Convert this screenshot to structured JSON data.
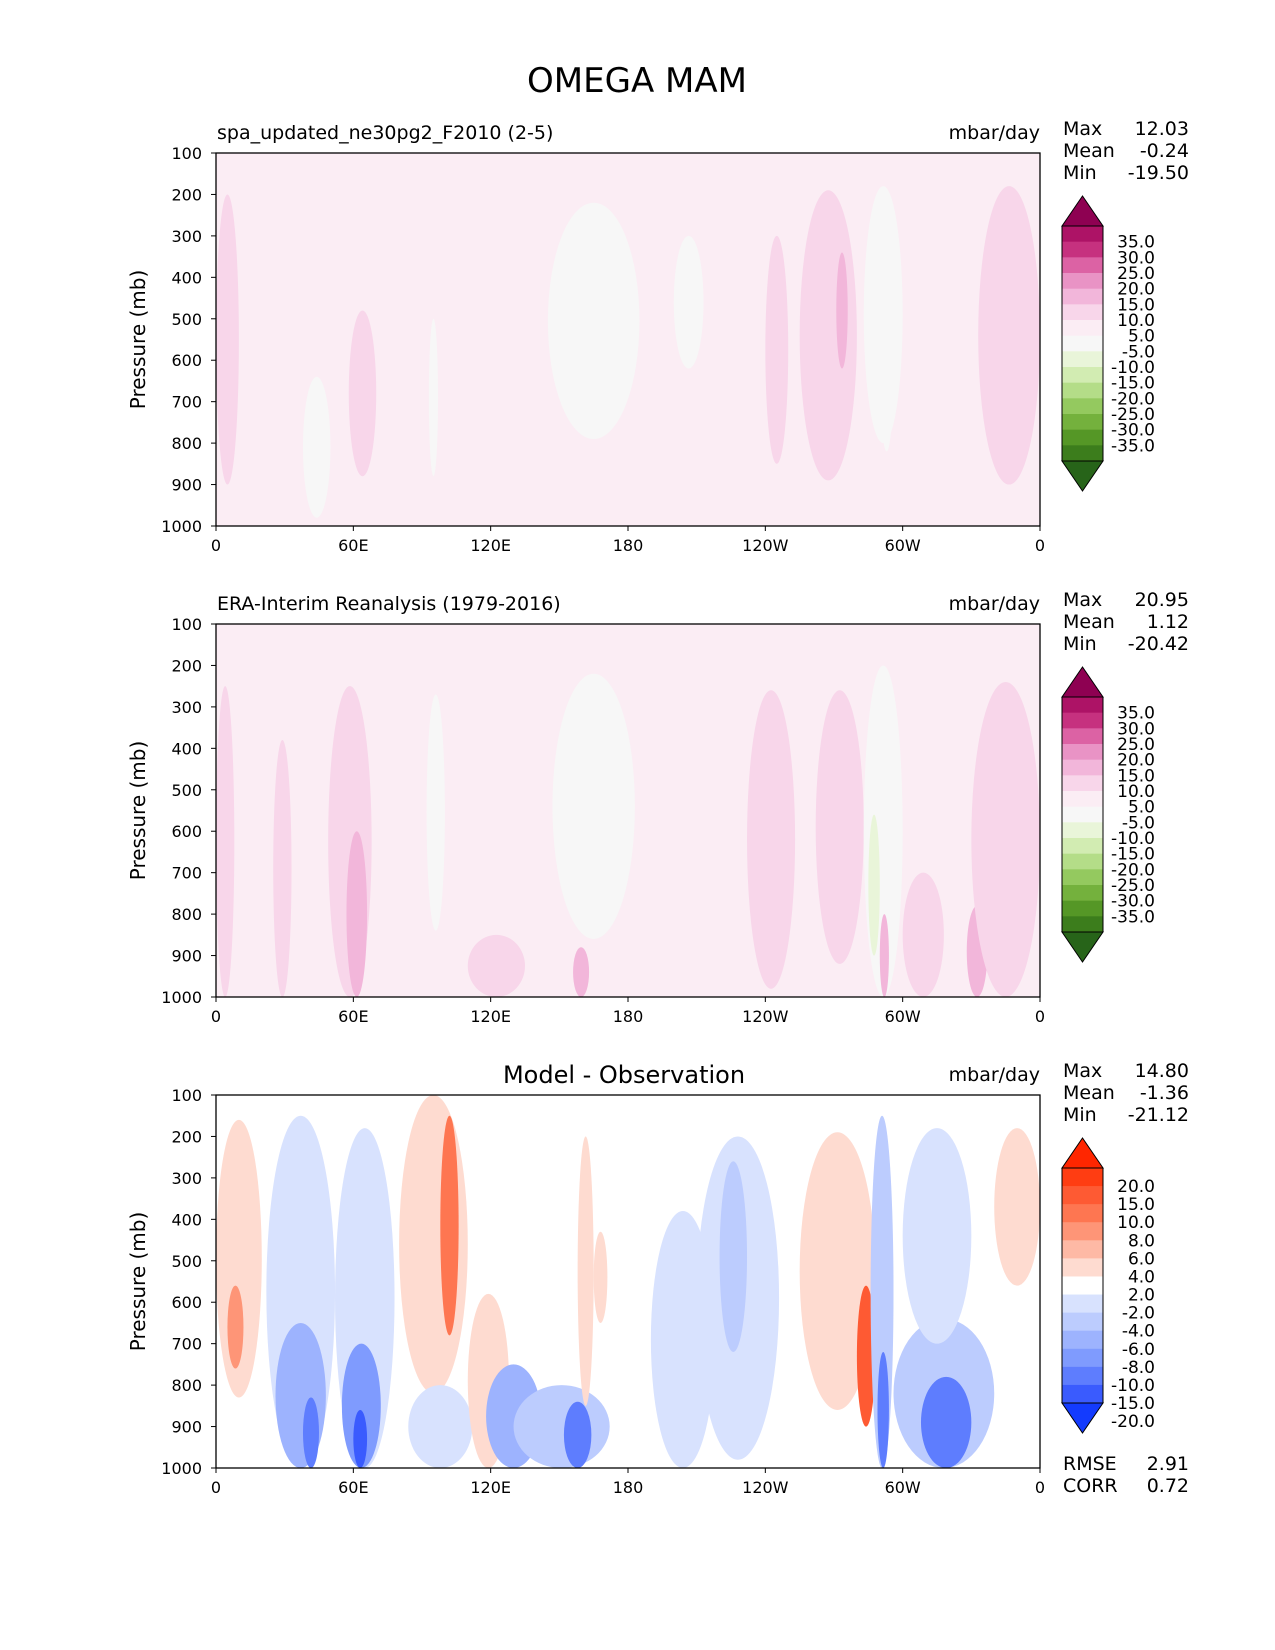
{
  "title": "OMEGA MAM",
  "axes": {
    "ylabel": "Pressure (mb)",
    "y_ticks": [
      100,
      200,
      300,
      400,
      500,
      600,
      700,
      800,
      900,
      1000
    ],
    "ylim": [
      1000,
      100
    ],
    "x_ticks": [
      "0",
      "60E",
      "120E",
      "180",
      "120W",
      "60W",
      "0"
    ],
    "xlim_deg": [
      0,
      360
    ]
  },
  "chart_data": [
    {
      "type": "heatmap",
      "panel": "test",
      "title": "spa_updated_ne30pg2_F2010 (2-5)",
      "units": "mbar/day",
      "stats": [
        {
          "label": "Max",
          "value": "12.03"
        },
        {
          "label": "Mean",
          "value": "-0.24"
        },
        {
          "label": "Min",
          "value": "-19.50"
        }
      ],
      "colorbar": {
        "levels": [
          "35.0",
          "30.0",
          "25.0",
          "20.0",
          "15.0",
          "10.0",
          "5.0",
          "-5.0",
          "-10.0",
          "-15.0",
          "-20.0",
          "-25.0",
          "-30.0",
          "-35.0"
        ],
        "colors": [
          "#8e0152",
          "#ad1366",
          "#c6317f",
          "#dc62a4",
          "#e993c5",
          "#f2b6da",
          "#f8d6ea",
          "#fbedf4",
          "#f7f7f7",
          "#e9f5d9",
          "#d2ecb2",
          "#b4dd88",
          "#94c95f",
          "#74b13d",
          "#559726",
          "#3c7d1c",
          "#276419"
        ],
        "extend": "both"
      },
      "features": [
        {
          "lon": [
            0,
            10
          ],
          "p": [
            200,
            900
          ],
          "v": 6
        },
        {
          "lon": [
            44,
            48
          ],
          "p": [
            760,
            900
          ],
          "v": -8
        },
        {
          "lon": [
            38,
            50
          ],
          "p": [
            640,
            980
          ],
          "v": -6
        },
        {
          "lon": [
            58,
            70
          ],
          "p": [
            480,
            880
          ],
          "v": 6
        },
        {
          "lon": [
            93,
            97
          ],
          "p": [
            500,
            880
          ],
          "v": -6
        },
        {
          "lon": [
            145,
            185
          ],
          "p": [
            220,
            790
          ],
          "v": -7
        },
        {
          "lon": [
            200,
            213
          ],
          "p": [
            300,
            620
          ],
          "v": -6
        },
        {
          "lon": [
            240,
            250
          ],
          "p": [
            300,
            850
          ],
          "v": 5
        },
        {
          "lon": [
            255,
            280
          ],
          "p": [
            190,
            890
          ],
          "v": 6
        },
        {
          "lon": [
            271,
            276
          ],
          "p": [
            340,
            620
          ],
          "v": 12
        },
        {
          "lon": [
            283,
            300
          ],
          "p": [
            180,
            800
          ],
          "v": -7
        },
        {
          "lon": [
            290,
            296
          ],
          "p": [
            400,
            820
          ],
          "v": -9
        },
        {
          "lon": [
            333,
            360
          ],
          "p": [
            180,
            900
          ],
          "v": 7
        }
      ]
    },
    {
      "type": "heatmap",
      "panel": "reference",
      "title": "ERA-Interim Reanalysis (1979-2016)",
      "units": "mbar/day",
      "stats": [
        {
          "label": "Max",
          "value": "20.95"
        },
        {
          "label": "Mean",
          "value": "1.12"
        },
        {
          "label": "Min",
          "value": "-20.42"
        }
      ],
      "colorbar": {
        "levels": [
          "35.0",
          "30.0",
          "25.0",
          "20.0",
          "15.0",
          "10.0",
          "5.0",
          "-5.0",
          "-10.0",
          "-15.0",
          "-20.0",
          "-25.0",
          "-30.0",
          "-35.0"
        ],
        "colors": [
          "#8e0152",
          "#ad1366",
          "#c6317f",
          "#dc62a4",
          "#e993c5",
          "#f2b6da",
          "#f8d6ea",
          "#fbedf4",
          "#f7f7f7",
          "#e9f5d9",
          "#d2ecb2",
          "#b4dd88",
          "#94c95f",
          "#74b13d",
          "#559726",
          "#3c7d1c",
          "#276419"
        ],
        "extend": "both"
      },
      "features": [
        {
          "lon": [
            0,
            8
          ],
          "p": [
            250,
            1000
          ],
          "v": 6
        },
        {
          "lon": [
            25,
            33
          ],
          "p": [
            380,
            1000
          ],
          "v": 6
        },
        {
          "lon": [
            49,
            68
          ],
          "p": [
            250,
            1000
          ],
          "v": 7
        },
        {
          "lon": [
            57,
            66
          ],
          "p": [
            600,
            1000
          ],
          "v": 14
        },
        {
          "lon": [
            92,
            100
          ],
          "p": [
            270,
            840
          ],
          "v": -6
        },
        {
          "lon": [
            110,
            135
          ],
          "p": [
            850,
            1000
          ],
          "v": 6
        },
        {
          "lon": [
            147,
            183
          ],
          "p": [
            220,
            860
          ],
          "v": -7
        },
        {
          "lon": [
            156,
            163
          ],
          "p": [
            880,
            1000
          ],
          "v": 12
        },
        {
          "lon": [
            232,
            253
          ],
          "p": [
            260,
            980
          ],
          "v": 6
        },
        {
          "lon": [
            262,
            283
          ],
          "p": [
            260,
            920
          ],
          "v": 6
        },
        {
          "lon": [
            283,
            300
          ],
          "p": [
            200,
            1000
          ],
          "v": -6
        },
        {
          "lon": [
            285,
            290
          ],
          "p": [
            560,
            900
          ],
          "v": -12
        },
        {
          "lon": [
            290,
            294
          ],
          "p": [
            800,
            1000
          ],
          "v": 14
        },
        {
          "lon": [
            300,
            318
          ],
          "p": [
            700,
            1000
          ],
          "v": 6
        },
        {
          "lon": [
            328,
            337
          ],
          "p": [
            780,
            1000
          ],
          "v": 11
        },
        {
          "lon": [
            330,
            360
          ],
          "p": [
            240,
            1000
          ],
          "v": 6
        }
      ]
    },
    {
      "type": "heatmap",
      "panel": "difference",
      "title": "Model - Observation",
      "units": "mbar/day",
      "stats": [
        {
          "label": "Max",
          "value": "14.80"
        },
        {
          "label": "Mean",
          "value": "-1.36"
        },
        {
          "label": "Min",
          "value": "-21.12"
        }
      ],
      "metrics": [
        {
          "label": "RMSE",
          "value": "2.91"
        },
        {
          "label": "CORR",
          "value": "0.72"
        }
      ],
      "colorbar": {
        "levels": [
          "20.0",
          "15.0",
          "10.0",
          "8.0",
          "6.0",
          "4.0",
          "2.0",
          "-2.0",
          "-4.0",
          "-6.0",
          "-8.0",
          "-10.0",
          "-15.0",
          "-20.0"
        ],
        "colors": [
          "#ff2600",
          "#ff3d12",
          "#fe5a33",
          "#fe7651",
          "#fe9577",
          "#feb9a5",
          "#fedbd0",
          "#ffffff",
          "#d8e2fe",
          "#bcccfe",
          "#9db3fe",
          "#7f9bfe",
          "#5e7dfe",
          "#3a5bfe",
          "#133bfe"
        ],
        "extend": "both"
      },
      "features": [
        {
          "lon": [
            0,
            20
          ],
          "p": [
            160,
            830
          ],
          "v": 3
        },
        {
          "lon": [
            5,
            12
          ],
          "p": [
            560,
            760
          ],
          "v": 7
        },
        {
          "lon": [
            22,
            52
          ],
          "p": [
            150,
            1000
          ],
          "v": -3
        },
        {
          "lon": [
            26,
            48
          ],
          "p": [
            650,
            1000
          ],
          "v": -8
        },
        {
          "lon": [
            38,
            45
          ],
          "p": [
            830,
            1000
          ],
          "v": -13
        },
        {
          "lon": [
            52,
            78
          ],
          "p": [
            180,
            1000
          ],
          "v": -3
        },
        {
          "lon": [
            55,
            72
          ],
          "p": [
            700,
            1000
          ],
          "v": -9
        },
        {
          "lon": [
            60,
            66
          ],
          "p": [
            860,
            1000
          ],
          "v": -16
        },
        {
          "lon": [
            80,
            110
          ],
          "p": [
            100,
            820
          ],
          "v": 3
        },
        {
          "lon": [
            98,
            106
          ],
          "p": [
            150,
            680
          ],
          "v": 9
        },
        {
          "lon": [
            84,
            112
          ],
          "p": [
            800,
            1000
          ],
          "v": -4
        },
        {
          "lon": [
            110,
            128
          ],
          "p": [
            580,
            1000
          ],
          "v": 3.5
        },
        {
          "lon": [
            118,
            142
          ],
          "p": [
            750,
            1000
          ],
          "v": -7
        },
        {
          "lon": [
            130,
            172
          ],
          "p": [
            800,
            1000
          ],
          "v": -5
        },
        {
          "lon": [
            152,
            164
          ],
          "p": [
            840,
            1000
          ],
          "v": -14
        },
        {
          "lon": [
            158,
            165
          ],
          "p": [
            200,
            850
          ],
          "v": 3
        },
        {
          "lon": [
            165,
            171
          ],
          "p": [
            430,
            650
          ],
          "v": 3
        },
        {
          "lon": [
            190,
            218
          ],
          "p": [
            380,
            1000
          ],
          "v": -3
        },
        {
          "lon": [
            210,
            246
          ],
          "p": [
            200,
            980
          ],
          "v": -3
        },
        {
          "lon": [
            220,
            232
          ],
          "p": [
            260,
            720
          ],
          "v": -5
        },
        {
          "lon": [
            255,
            288
          ],
          "p": [
            190,
            860
          ],
          "v": 3
        },
        {
          "lon": [
            280,
            288
          ],
          "p": [
            560,
            900
          ],
          "v": 10
        },
        {
          "lon": [
            286,
            296
          ],
          "p": [
            150,
            1000
          ],
          "v": -5
        },
        {
          "lon": [
            289,
            294
          ],
          "p": [
            720,
            1000
          ],
          "v": -14
        },
        {
          "lon": [
            296,
            340
          ],
          "p": [
            640,
            1000
          ],
          "v": -6
        },
        {
          "lon": [
            308,
            330
          ],
          "p": [
            780,
            1000
          ],
          "v": -12
        },
        {
          "lon": [
            300,
            330
          ],
          "p": [
            180,
            700
          ],
          "v": -3
        },
        {
          "lon": [
            340,
            360
          ],
          "p": [
            180,
            560
          ],
          "v": 3
        }
      ]
    }
  ]
}
